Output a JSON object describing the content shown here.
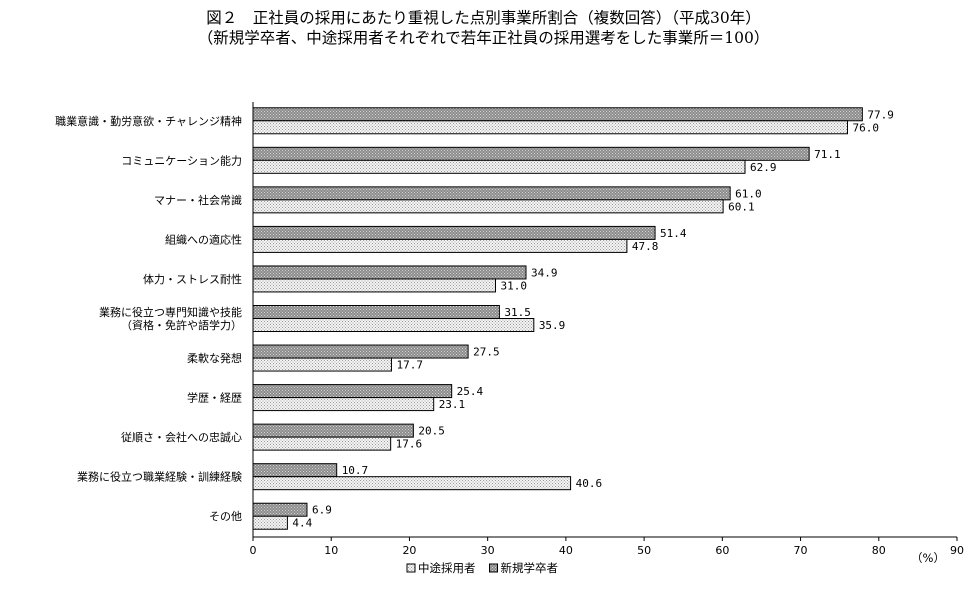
{
  "title": "図２　正社員の採用にあたり重視した点別事業所割合（複数回答）（平成30年）",
  "subtitle": "（新規学卒者、中途採用者それぞれで若年正社員の採用選考をした事業所＝100）",
  "chart_data": {
    "type": "bar",
    "orientation": "horizontal",
    "categories": [
      [
        "職業意識・勤労意欲・チャレンジ精神"
      ],
      [
        "コミュニケーション能力"
      ],
      [
        "マナー・社会常識"
      ],
      [
        "組織への適応性"
      ],
      [
        "体力・ストレス耐性"
      ],
      [
        "業務に役立つ専門知識や技能",
        "（資格・免許や語学力）"
      ],
      [
        "柔軟な発想"
      ],
      [
        "学歴・経歴"
      ],
      [
        "従順さ・会社への忠誠心"
      ],
      [
        "業務に役立つ職業経験・訓練経験"
      ],
      [
        "その他"
      ]
    ],
    "series": [
      {
        "name": "新規学卒者",
        "color": "#9a9a9a",
        "pattern": "dark-dots",
        "values": [
          77.9,
          71.1,
          61.0,
          51.4,
          34.9,
          31.5,
          27.5,
          25.4,
          20.5,
          10.7,
          6.9
        ],
        "labels": [
          "77.9",
          "71.1",
          "61.0",
          "51.4",
          "34.9",
          "31.5",
          "27.5",
          "25.4",
          "20.5",
          "10.7",
          "6.9"
        ]
      },
      {
        "name": "中途採用者",
        "color": "#eeeeee",
        "pattern": "light-dots",
        "values": [
          76.0,
          62.9,
          60.1,
          47.8,
          31.0,
          35.9,
          17.7,
          23.1,
          17.6,
          40.6,
          4.4
        ],
        "labels": [
          "76.0",
          "62.9",
          "60.1",
          "47.8",
          "31.0",
          "35.9",
          "17.7",
          "23.1",
          "17.6",
          "40.6",
          "4.4"
        ]
      }
    ],
    "xlim": [
      0,
      90
    ],
    "xticks": [
      0,
      10,
      20,
      30,
      40,
      50,
      60,
      70,
      80,
      90
    ],
    "xtick_labels": [
      "0",
      "10",
      "20",
      "30",
      "40",
      "50",
      "60",
      "70",
      "80",
      "90"
    ],
    "xlabel": "（%）",
    "legend": {
      "position": "bottom",
      "order": [
        "中途採用者",
        "新規学卒者"
      ]
    },
    "grid": false
  }
}
